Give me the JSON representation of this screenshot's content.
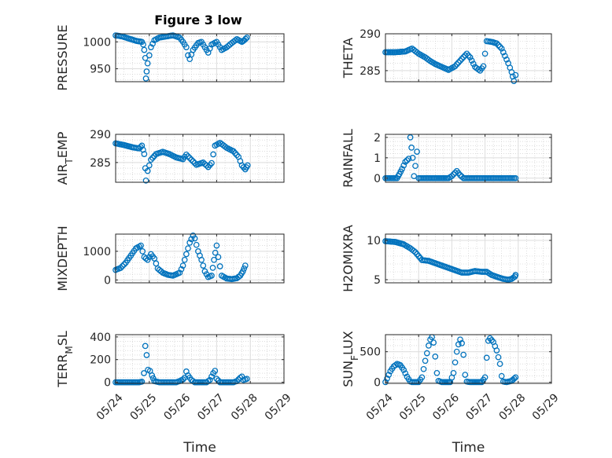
{
  "figure": {
    "title": "Figure 3 low",
    "marker_color": "#0072BD"
  },
  "chart_data": [
    {
      "type": "scatter",
      "panel": "pressure",
      "ylabel": "PRESSURE",
      "ylim": [
        926,
        1015
      ],
      "yticks": [
        950,
        1000
      ],
      "x": [
        "05/24",
        "05/25",
        "05/26",
        "05/27",
        "05/28",
        "05/29"
      ],
      "xlabel": "",
      "keypoints": [
        [
          0.0,
          1012
        ],
        [
          0.2,
          1010
        ],
        [
          0.4,
          1006
        ],
        [
          0.6,
          1002
        ],
        [
          0.78,
          1000
        ],
        [
          0.82,
          995
        ],
        [
          0.85,
          985
        ],
        [
          0.88,
          970
        ],
        [
          0.9,
          932
        ],
        [
          0.92,
          945
        ],
        [
          0.95,
          960
        ],
        [
          1.0,
          975
        ],
        [
          1.05,
          990
        ],
        [
          1.15,
          1003
        ],
        [
          1.3,
          1008
        ],
        [
          1.5,
          1010
        ],
        [
          1.7,
          1012
        ],
        [
          1.9,
          1008
        ],
        [
          2.0,
          1000
        ],
        [
          2.1,
          990
        ],
        [
          2.15,
          975
        ],
        [
          2.2,
          968
        ],
        [
          2.3,
          985
        ],
        [
          2.45,
          998
        ],
        [
          2.55,
          1000
        ],
        [
          2.65,
          990
        ],
        [
          2.75,
          980
        ],
        [
          2.85,
          995
        ],
        [
          3.0,
          1000
        ],
        [
          3.15,
          985
        ],
        [
          3.3,
          990
        ],
        [
          3.45,
          998
        ],
        [
          3.6,
          1005
        ],
        [
          3.75,
          1000
        ],
        [
          3.82,
          1003
        ],
        [
          3.9,
          1008
        ]
      ]
    },
    {
      "type": "scatter",
      "panel": "theta",
      "ylabel": "THETA",
      "ylim": [
        283.5,
        290
      ],
      "yticks": [
        285,
        290
      ],
      "x": [
        "05/24",
        "05/25",
        "05/26",
        "05/27",
        "05/28",
        "05/29"
      ],
      "xlabel": "",
      "keypoints": [
        [
          0.0,
          287.5
        ],
        [
          0.3,
          287.5
        ],
        [
          0.6,
          287.6
        ],
        [
          0.8,
          288.0
        ],
        [
          1.0,
          287.3
        ],
        [
          1.2,
          286.8
        ],
        [
          1.35,
          286.3
        ],
        [
          1.5,
          285.9
        ],
        [
          1.7,
          285.5
        ],
        [
          1.9,
          285.1
        ],
        [
          2.1,
          285.6
        ],
        [
          2.3,
          286.6
        ],
        [
          2.45,
          287.3
        ],
        [
          2.55,
          286.8
        ],
        [
          2.7,
          285.5
        ],
        [
          2.85,
          285.0
        ],
        [
          2.95,
          285.6
        ],
        [
          3.05,
          289.0
        ],
        [
          3.2,
          288.9
        ],
        [
          3.35,
          288.7
        ],
        [
          3.5,
          288.0
        ],
        [
          3.6,
          287.0
        ],
        [
          3.7,
          286.0
        ],
        [
          3.8,
          284.8
        ],
        [
          3.87,
          283.6
        ],
        [
          3.92,
          284.4
        ]
      ]
    },
    {
      "type": "scatter",
      "panel": "airtemp",
      "ylabel": "AIR_T_EMP",
      "ylim": [
        281.5,
        290
      ],
      "yticks": [
        285,
        290
      ],
      "x": [
        "05/24",
        "05/25",
        "05/26",
        "05/27",
        "05/28",
        "05/29"
      ],
      "xlabel": "",
      "keypoints": [
        [
          0.0,
          288.4
        ],
        [
          0.25,
          288.1
        ],
        [
          0.5,
          287.7
        ],
        [
          0.7,
          287.5
        ],
        [
          0.78,
          288.0
        ],
        [
          0.85,
          286.5
        ],
        [
          0.88,
          284.0
        ],
        [
          0.9,
          281.8
        ],
        [
          0.95,
          283.5
        ],
        [
          1.05,
          285.5
        ],
        [
          1.2,
          286.5
        ],
        [
          1.4,
          286.9
        ],
        [
          1.6,
          286.5
        ],
        [
          1.8,
          285.9
        ],
        [
          2.0,
          285.6
        ],
        [
          2.1,
          286.4
        ],
        [
          2.25,
          285.5
        ],
        [
          2.4,
          284.6
        ],
        [
          2.6,
          285.0
        ],
        [
          2.75,
          284.2
        ],
        [
          2.85,
          284.9
        ],
        [
          2.95,
          288.0
        ],
        [
          3.1,
          288.5
        ],
        [
          3.3,
          287.6
        ],
        [
          3.5,
          287.0
        ],
        [
          3.65,
          286.0
        ],
        [
          3.75,
          284.5
        ],
        [
          3.85,
          283.8
        ],
        [
          3.92,
          284.5
        ]
      ]
    },
    {
      "type": "scatter",
      "panel": "rainfall",
      "ylabel": "RAINFALL",
      "ylim": [
        -0.2,
        2.15
      ],
      "yticks": [
        0,
        1,
        2
      ],
      "x": [
        "05/24",
        "05/25",
        "05/26",
        "05/27",
        "05/28",
        "05/29"
      ],
      "xlabel": "",
      "keypoints": [
        [
          0.0,
          0
        ],
        [
          0.35,
          0
        ],
        [
          0.42,
          0.2
        ],
        [
          0.5,
          0.45
        ],
        [
          0.6,
          0.8
        ],
        [
          0.7,
          0.95
        ],
        [
          0.75,
          2.0
        ],
        [
          0.82,
          1.0
        ],
        [
          0.86,
          0.1
        ],
        [
          0.9,
          0.6
        ],
        [
          0.95,
          1.3
        ],
        [
          1.0,
          0.0
        ],
        [
          1.5,
          0
        ],
        [
          1.9,
          0
        ],
        [
          2.0,
          0.1
        ],
        [
          2.15,
          0.35
        ],
        [
          2.25,
          0.15
        ],
        [
          2.35,
          0
        ],
        [
          3.0,
          0
        ],
        [
          3.92,
          0
        ]
      ]
    },
    {
      "type": "scatter",
      "panel": "mixdepth",
      "ylabel": "MIXDEPTH",
      "ylim": [
        -100,
        1600
      ],
      "yticks": [
        0,
        1000
      ],
      "x": [
        "05/24",
        "05/25",
        "05/26",
        "05/27",
        "05/28",
        "05/29"
      ],
      "xlabel": "",
      "keypoints": [
        [
          0.0,
          350
        ],
        [
          0.15,
          420
        ],
        [
          0.3,
          600
        ],
        [
          0.45,
          850
        ],
        [
          0.6,
          1100
        ],
        [
          0.75,
          1200
        ],
        [
          0.85,
          800
        ],
        [
          0.95,
          700
        ],
        [
          1.05,
          900
        ],
        [
          1.15,
          750
        ],
        [
          1.25,
          400
        ],
        [
          1.4,
          250
        ],
        [
          1.55,
          180
        ],
        [
          1.7,
          150
        ],
        [
          1.8,
          200
        ],
        [
          1.9,
          250
        ],
        [
          2.0,
          500
        ],
        [
          2.1,
          900
        ],
        [
          2.2,
          1300
        ],
        [
          2.3,
          1550
        ],
        [
          2.35,
          1450
        ],
        [
          2.45,
          1000
        ],
        [
          2.55,
          700
        ],
        [
          2.65,
          300
        ],
        [
          2.75,
          100
        ],
        [
          2.85,
          150
        ],
        [
          2.92,
          700
        ],
        [
          3.0,
          1200
        ],
        [
          3.05,
          800
        ],
        [
          3.15,
          150
        ],
        [
          3.3,
          50
        ],
        [
          3.45,
          30
        ],
        [
          3.6,
          60
        ],
        [
          3.7,
          150
        ],
        [
          3.78,
          300
        ],
        [
          3.85,
          500
        ]
      ]
    },
    {
      "type": "scatter",
      "panel": "h2omixra",
      "ylabel": "H2OMIXRA",
      "ylim": [
        4.6,
        10.8
      ],
      "yticks": [
        5,
        10
      ],
      "x": [
        "05/24",
        "05/25",
        "05/26",
        "05/27",
        "05/28",
        "05/29"
      ],
      "xlabel": "",
      "keypoints": [
        [
          0.0,
          9.9
        ],
        [
          0.3,
          9.8
        ],
        [
          0.55,
          9.5
        ],
        [
          0.75,
          9.0
        ],
        [
          0.9,
          8.5
        ],
        [
          1.0,
          8.0
        ],
        [
          1.1,
          7.5
        ],
        [
          1.3,
          7.4
        ],
        [
          1.5,
          7.1
        ],
        [
          1.7,
          6.8
        ],
        [
          1.9,
          6.5
        ],
        [
          2.1,
          6.2
        ],
        [
          2.3,
          5.9
        ],
        [
          2.5,
          5.9
        ],
        [
          2.7,
          6.1
        ],
        [
          2.9,
          6.0
        ],
        [
          3.05,
          6.0
        ],
        [
          3.2,
          5.6
        ],
        [
          3.4,
          5.3
        ],
        [
          3.55,
          5.1
        ],
        [
          3.7,
          5.0
        ],
        [
          3.8,
          5.1
        ],
        [
          3.9,
          5.4
        ],
        [
          3.92,
          5.6
        ]
      ]
    },
    {
      "type": "scatter",
      "panel": "terrmsl",
      "ylabel": "TERR_M_SL",
      "ylim": [
        -10,
        420
      ],
      "yticks": [
        0,
        200,
        400
      ],
      "x": [
        "05/24",
        "05/25",
        "05/26",
        "05/27",
        "05/28",
        "05/29"
      ],
      "xlabel": "Time",
      "keypoints": [
        [
          0.0,
          0
        ],
        [
          0.7,
          0
        ],
        [
          0.78,
          5
        ],
        [
          0.84,
          80
        ],
        [
          0.88,
          320
        ],
        [
          0.92,
          240
        ],
        [
          0.96,
          110
        ],
        [
          1.02,
          100
        ],
        [
          1.08,
          60
        ],
        [
          1.15,
          10
        ],
        [
          1.3,
          0
        ],
        [
          1.8,
          0
        ],
        [
          1.9,
          10
        ],
        [
          2.0,
          25
        ],
        [
          2.05,
          40
        ],
        [
          2.1,
          95
        ],
        [
          2.15,
          60
        ],
        [
          2.25,
          20
        ],
        [
          2.35,
          0
        ],
        [
          2.7,
          0
        ],
        [
          2.8,
          20
        ],
        [
          2.9,
          80
        ],
        [
          2.95,
          100
        ],
        [
          3.0,
          30
        ],
        [
          3.1,
          0
        ],
        [
          3.5,
          0
        ],
        [
          3.6,
          10
        ],
        [
          3.7,
          40
        ],
        [
          3.75,
          50
        ],
        [
          3.8,
          20
        ],
        [
          3.9,
          30
        ]
      ]
    },
    {
      "type": "scatter",
      "panel": "sunflux",
      "ylabel": "SUN_F_LUX",
      "ylim": [
        -20,
        780
      ],
      "yticks": [
        0,
        500
      ],
      "x": [
        "05/24",
        "05/25",
        "05/26",
        "05/27",
        "05/28",
        "05/29"
      ],
      "xlabel": "Time",
      "keypoints": [
        [
          0.0,
          0
        ],
        [
          0.05,
          60
        ],
        [
          0.15,
          180
        ],
        [
          0.25,
          260
        ],
        [
          0.35,
          300
        ],
        [
          0.45,
          280
        ],
        [
          0.55,
          200
        ],
        [
          0.65,
          90
        ],
        [
          0.75,
          10
        ],
        [
          0.8,
          0
        ],
        [
          1.0,
          0
        ],
        [
          1.1,
          80
        ],
        [
          1.2,
          350
        ],
        [
          1.3,
          600
        ],
        [
          1.35,
          700
        ],
        [
          1.4,
          740
        ],
        [
          1.45,
          650
        ],
        [
          1.5,
          420
        ],
        [
          1.55,
          150
        ],
        [
          1.6,
          20
        ],
        [
          1.7,
          0
        ],
        [
          1.95,
          0
        ],
        [
          2.05,
          150
        ],
        [
          2.15,
          500
        ],
        [
          2.2,
          620
        ],
        [
          2.25,
          700
        ],
        [
          2.3,
          640
        ],
        [
          2.35,
          450
        ],
        [
          2.4,
          120
        ],
        [
          2.45,
          10
        ],
        [
          2.55,
          0
        ],
        [
          2.9,
          0
        ],
        [
          3.0,
          80
        ],
        [
          3.05,
          400
        ],
        [
          3.1,
          680
        ],
        [
          3.15,
          720
        ],
        [
          3.25,
          660
        ],
        [
          3.35,
          520
        ],
        [
          3.45,
          300
        ],
        [
          3.5,
          100
        ],
        [
          3.55,
          10
        ],
        [
          3.65,
          0
        ],
        [
          3.8,
          20
        ],
        [
          3.88,
          60
        ],
        [
          3.92,
          80
        ]
      ]
    }
  ]
}
